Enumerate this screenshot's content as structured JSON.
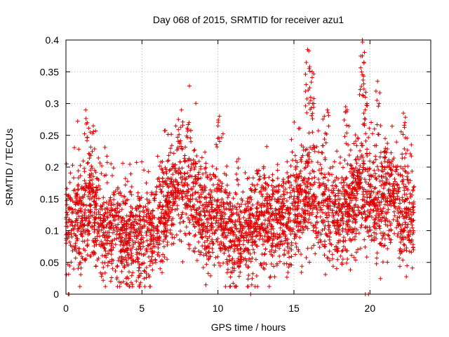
{
  "chart_data": {
    "type": "scatter",
    "title": "Day 068 of 2015, SRMTID for receiver azu1",
    "xlabel": "GPS time / hours",
    "ylabel": "SRMTID / TECUs",
    "xlim": [
      0,
      24
    ],
    "ylim": [
      0,
      0.4
    ],
    "x_ticks": [
      0,
      5,
      10,
      15,
      20
    ],
    "x_tick_labels": [
      "0",
      "5",
      "10",
      "15",
      "20"
    ],
    "y_ticks": [
      0,
      0.05,
      0.1,
      0.15,
      0.2,
      0.25,
      0.3,
      0.35,
      0.4
    ],
    "y_tick_labels": [
      "0",
      "0.05",
      "0.1",
      "0.15",
      "0.2",
      "0.25",
      "0.3",
      "0.35",
      "0.4"
    ],
    "grid": true,
    "marker": "+",
    "color": "#dd0000",
    "series": [
      {
        "name": "SRMTID",
        "trend": [
          [
            0.0,
            0.115
          ],
          [
            0.5,
            0.12
          ],
          [
            1.0,
            0.11
          ],
          [
            1.5,
            0.14
          ],
          [
            2.0,
            0.12
          ],
          [
            2.5,
            0.105
          ],
          [
            3.0,
            0.095
          ],
          [
            3.5,
            0.09
          ],
          [
            4.0,
            0.085
          ],
          [
            4.5,
            0.09
          ],
          [
            5.0,
            0.09
          ],
          [
            5.5,
            0.095
          ],
          [
            6.0,
            0.115
          ],
          [
            6.5,
            0.13
          ],
          [
            7.0,
            0.15
          ],
          [
            7.5,
            0.165
          ],
          [
            8.0,
            0.17
          ],
          [
            8.5,
            0.15
          ],
          [
            9.0,
            0.12
          ],
          [
            9.5,
            0.11
          ],
          [
            10.0,
            0.12
          ],
          [
            10.5,
            0.1
          ],
          [
            11.0,
            0.09
          ],
          [
            11.5,
            0.095
          ],
          [
            12.0,
            0.1
          ],
          [
            12.5,
            0.11
          ],
          [
            13.0,
            0.12
          ],
          [
            13.5,
            0.12
          ],
          [
            14.0,
            0.115
          ],
          [
            14.5,
            0.11
          ],
          [
            15.0,
            0.12
          ],
          [
            15.5,
            0.15
          ],
          [
            16.0,
            0.16
          ],
          [
            16.5,
            0.15
          ],
          [
            17.0,
            0.13
          ],
          [
            17.5,
            0.12
          ],
          [
            18.0,
            0.12
          ],
          [
            18.5,
            0.13
          ],
          [
            19.0,
            0.15
          ],
          [
            19.5,
            0.17
          ],
          [
            20.0,
            0.15
          ],
          [
            20.5,
            0.13
          ],
          [
            21.0,
            0.15
          ],
          [
            21.5,
            0.16
          ],
          [
            22.0,
            0.13
          ],
          [
            22.5,
            0.13
          ],
          [
            22.9,
            0.13
          ]
        ],
        "spread": 0.04,
        "points_per_hour": 160,
        "x_range": [
          0,
          22.9
        ],
        "peaks": [
          {
            "x": 1.3,
            "y": 0.29
          },
          {
            "x": 1.4,
            "y": 0.27
          },
          {
            "x": 1.6,
            "y": 0.255
          },
          {
            "x": 1.8,
            "y": 0.265
          },
          {
            "x": 7.6,
            "y": 0.29
          },
          {
            "x": 7.4,
            "y": 0.275
          },
          {
            "x": 8.1,
            "y": 0.27
          },
          {
            "x": 10.1,
            "y": 0.28
          },
          {
            "x": 10.0,
            "y": 0.265
          },
          {
            "x": 15.9,
            "y": 0.385
          },
          {
            "x": 16.0,
            "y": 0.355
          },
          {
            "x": 16.2,
            "y": 0.35
          },
          {
            "x": 15.8,
            "y": 0.33
          },
          {
            "x": 16.1,
            "y": 0.31
          },
          {
            "x": 16.3,
            "y": 0.3
          },
          {
            "x": 17.2,
            "y": 0.29
          },
          {
            "x": 17.0,
            "y": 0.28
          },
          {
            "x": 18.4,
            "y": 0.295
          },
          {
            "x": 18.5,
            "y": 0.29
          },
          {
            "x": 19.5,
            "y": 0.4
          },
          {
            "x": 19.5,
            "y": 0.375
          },
          {
            "x": 19.6,
            "y": 0.365
          },
          {
            "x": 19.45,
            "y": 0.35
          },
          {
            "x": 19.7,
            "y": 0.31
          },
          {
            "x": 19.8,
            "y": 0.3
          },
          {
            "x": 20.5,
            "y": 0.335
          },
          {
            "x": 20.6,
            "y": 0.3
          },
          {
            "x": 20.3,
            "y": 0.26
          },
          {
            "x": 22.2,
            "y": 0.285
          },
          {
            "x": 22.3,
            "y": 0.27
          },
          {
            "x": 21.0,
            "y": 0.245
          }
        ],
        "zero_points": [
          0.15,
          0.2,
          12.15,
          19.7,
          19.9
        ]
      }
    ]
  }
}
